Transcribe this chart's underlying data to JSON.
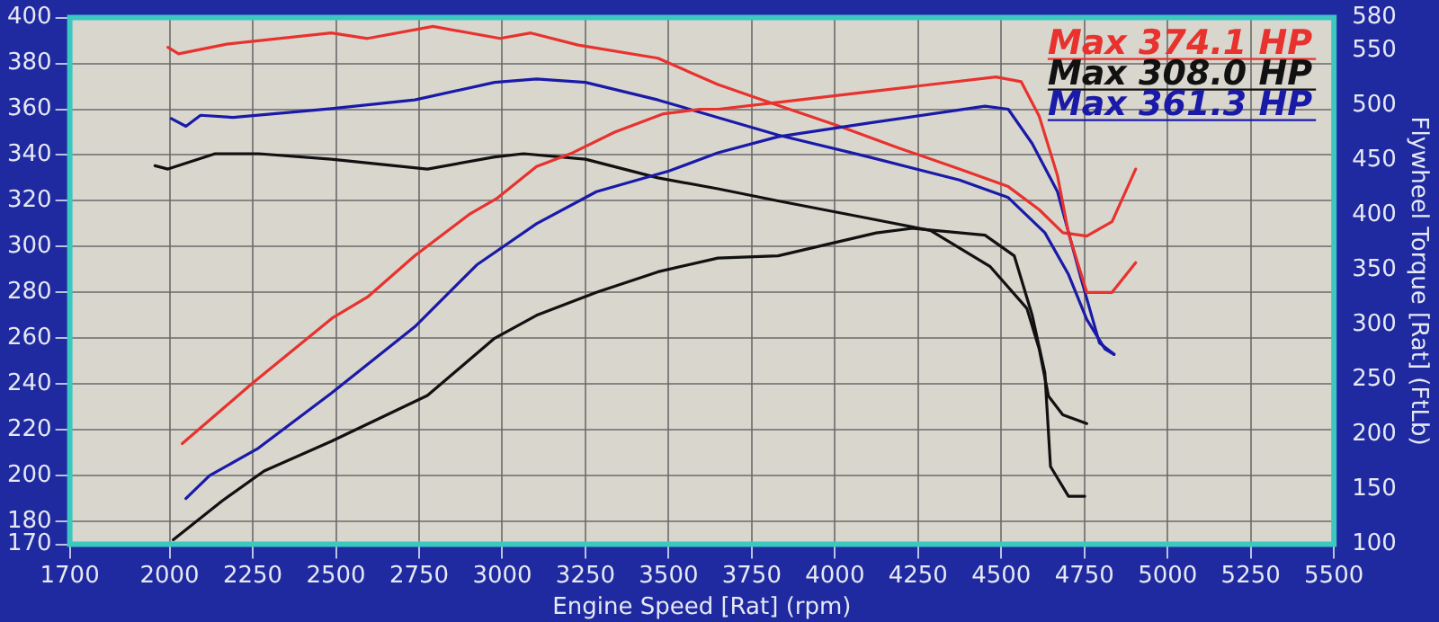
{
  "chart_data": {
    "type": "line",
    "xlabel": "Engine Speed [Rat] (rpm)",
    "y2label": "Flywheel Torque [Rat] (FtLb)",
    "xlim": [
      1700,
      5500
    ],
    "xticks": [
      1700,
      2000,
      2250,
      2500,
      2750,
      3000,
      3250,
      3500,
      3750,
      4000,
      4250,
      4500,
      4750,
      5000,
      5250,
      5500
    ],
    "ylim": [
      170,
      400
    ],
    "yticks": [
      170,
      180,
      200,
      220,
      240,
      260,
      280,
      300,
      320,
      340,
      360,
      380,
      400
    ],
    "y2lim": [
      100,
      580
    ],
    "y2ticks": [
      100,
      150,
      200,
      250,
      300,
      350,
      400,
      450,
      500,
      550,
      580
    ],
    "grid": true,
    "legend": false,
    "marker": "none",
    "annotations": [
      "Max 374.1 HP",
      "Max 308.0 HP",
      "Max 361.3 HP"
    ],
    "series": [
      {
        "color": "#e8322e",
        "x": [
          2038,
          2246,
          2491,
          2595,
          2737,
          2900,
          2983,
          3103,
          3212,
          3338,
          3485,
          3594,
          3649,
          3829,
          4124,
          4484,
          4560,
          4614,
          4669,
          4702,
          4757,
          4833,
          4904
        ],
        "values": [
          214,
          240,
          269,
          278,
          296,
          314,
          321,
          335,
          341,
          350,
          358,
          360,
          360,
          363,
          368,
          374.1,
          372,
          357,
          331,
          306,
          280,
          280,
          293
        ]
      },
      {
        "color": "#111111",
        "x": [
          2011,
          2158,
          2284,
          2486,
          2775,
          2977,
          3103,
          3283,
          3468,
          3648,
          3829,
          4124,
          4233,
          4451,
          4539,
          4593,
          4631,
          4648,
          4702,
          4751
        ],
        "values": [
          172,
          189,
          202,
          215,
          235,
          260,
          270,
          280,
          289,
          295,
          296,
          306,
          308,
          305,
          296,
          270,
          245,
          204,
          191,
          191
        ]
      },
      {
        "color": "#1a1aa8",
        "x": [
          2049,
          2120,
          2267,
          2486,
          2737,
          2923,
          3103,
          3283,
          3501,
          3648,
          3829,
          4102,
          4451,
          4521,
          4593,
          4669,
          4740,
          4795,
          4839
        ],
        "values": [
          190,
          200,
          212,
          236,
          265,
          292,
          310,
          324,
          333,
          341,
          348,
          354,
          361.3,
          360,
          345,
          324,
          286,
          258,
          253
        ]
      },
      {
        "axis": "y2",
        "color": "#e8322e",
        "x": [
          1995,
          2027,
          2175,
          2486,
          2595,
          2792,
          2993,
          3086,
          3228,
          3468,
          3648,
          3829,
          4014,
          4194,
          4374,
          4521,
          4614,
          4685,
          4757,
          4833,
          4904
        ],
        "values": [
          553,
          547,
          556,
          566,
          561,
          572,
          561,
          566,
          555,
          543,
          519,
          500,
          481,
          461,
          442,
          426,
          405,
          384,
          381,
          394,
          442
        ]
      },
      {
        "axis": "y2",
        "color": "#111111",
        "x": [
          1956,
          1995,
          2137,
          2267,
          2486,
          2775,
          2977,
          3064,
          3250,
          3468,
          3648,
          3829,
          4102,
          4287,
          4467,
          4577,
          4614,
          4642,
          4685,
          4757
        ],
        "values": [
          445,
          442,
          456,
          456,
          451,
          442,
          453,
          456,
          451,
          434,
          424,
          413,
          397,
          386,
          353,
          315,
          278,
          235,
          218,
          210
        ]
      },
      {
        "axis": "y2",
        "color": "#1a1aa8",
        "x": [
          2005,
          2049,
          2093,
          2191,
          2486,
          2737,
          2977,
          3103,
          3250,
          3468,
          3648,
          3829,
          4102,
          4374,
          4521,
          4631,
          4702,
          4757,
          4812,
          4839
        ],
        "values": [
          488,
          481,
          491,
          489,
          497,
          505,
          521,
          524,
          521,
          505,
          489,
          473,
          453,
          432,
          416,
          384,
          346,
          305,
          278,
          273
        ]
      }
    ]
  }
}
